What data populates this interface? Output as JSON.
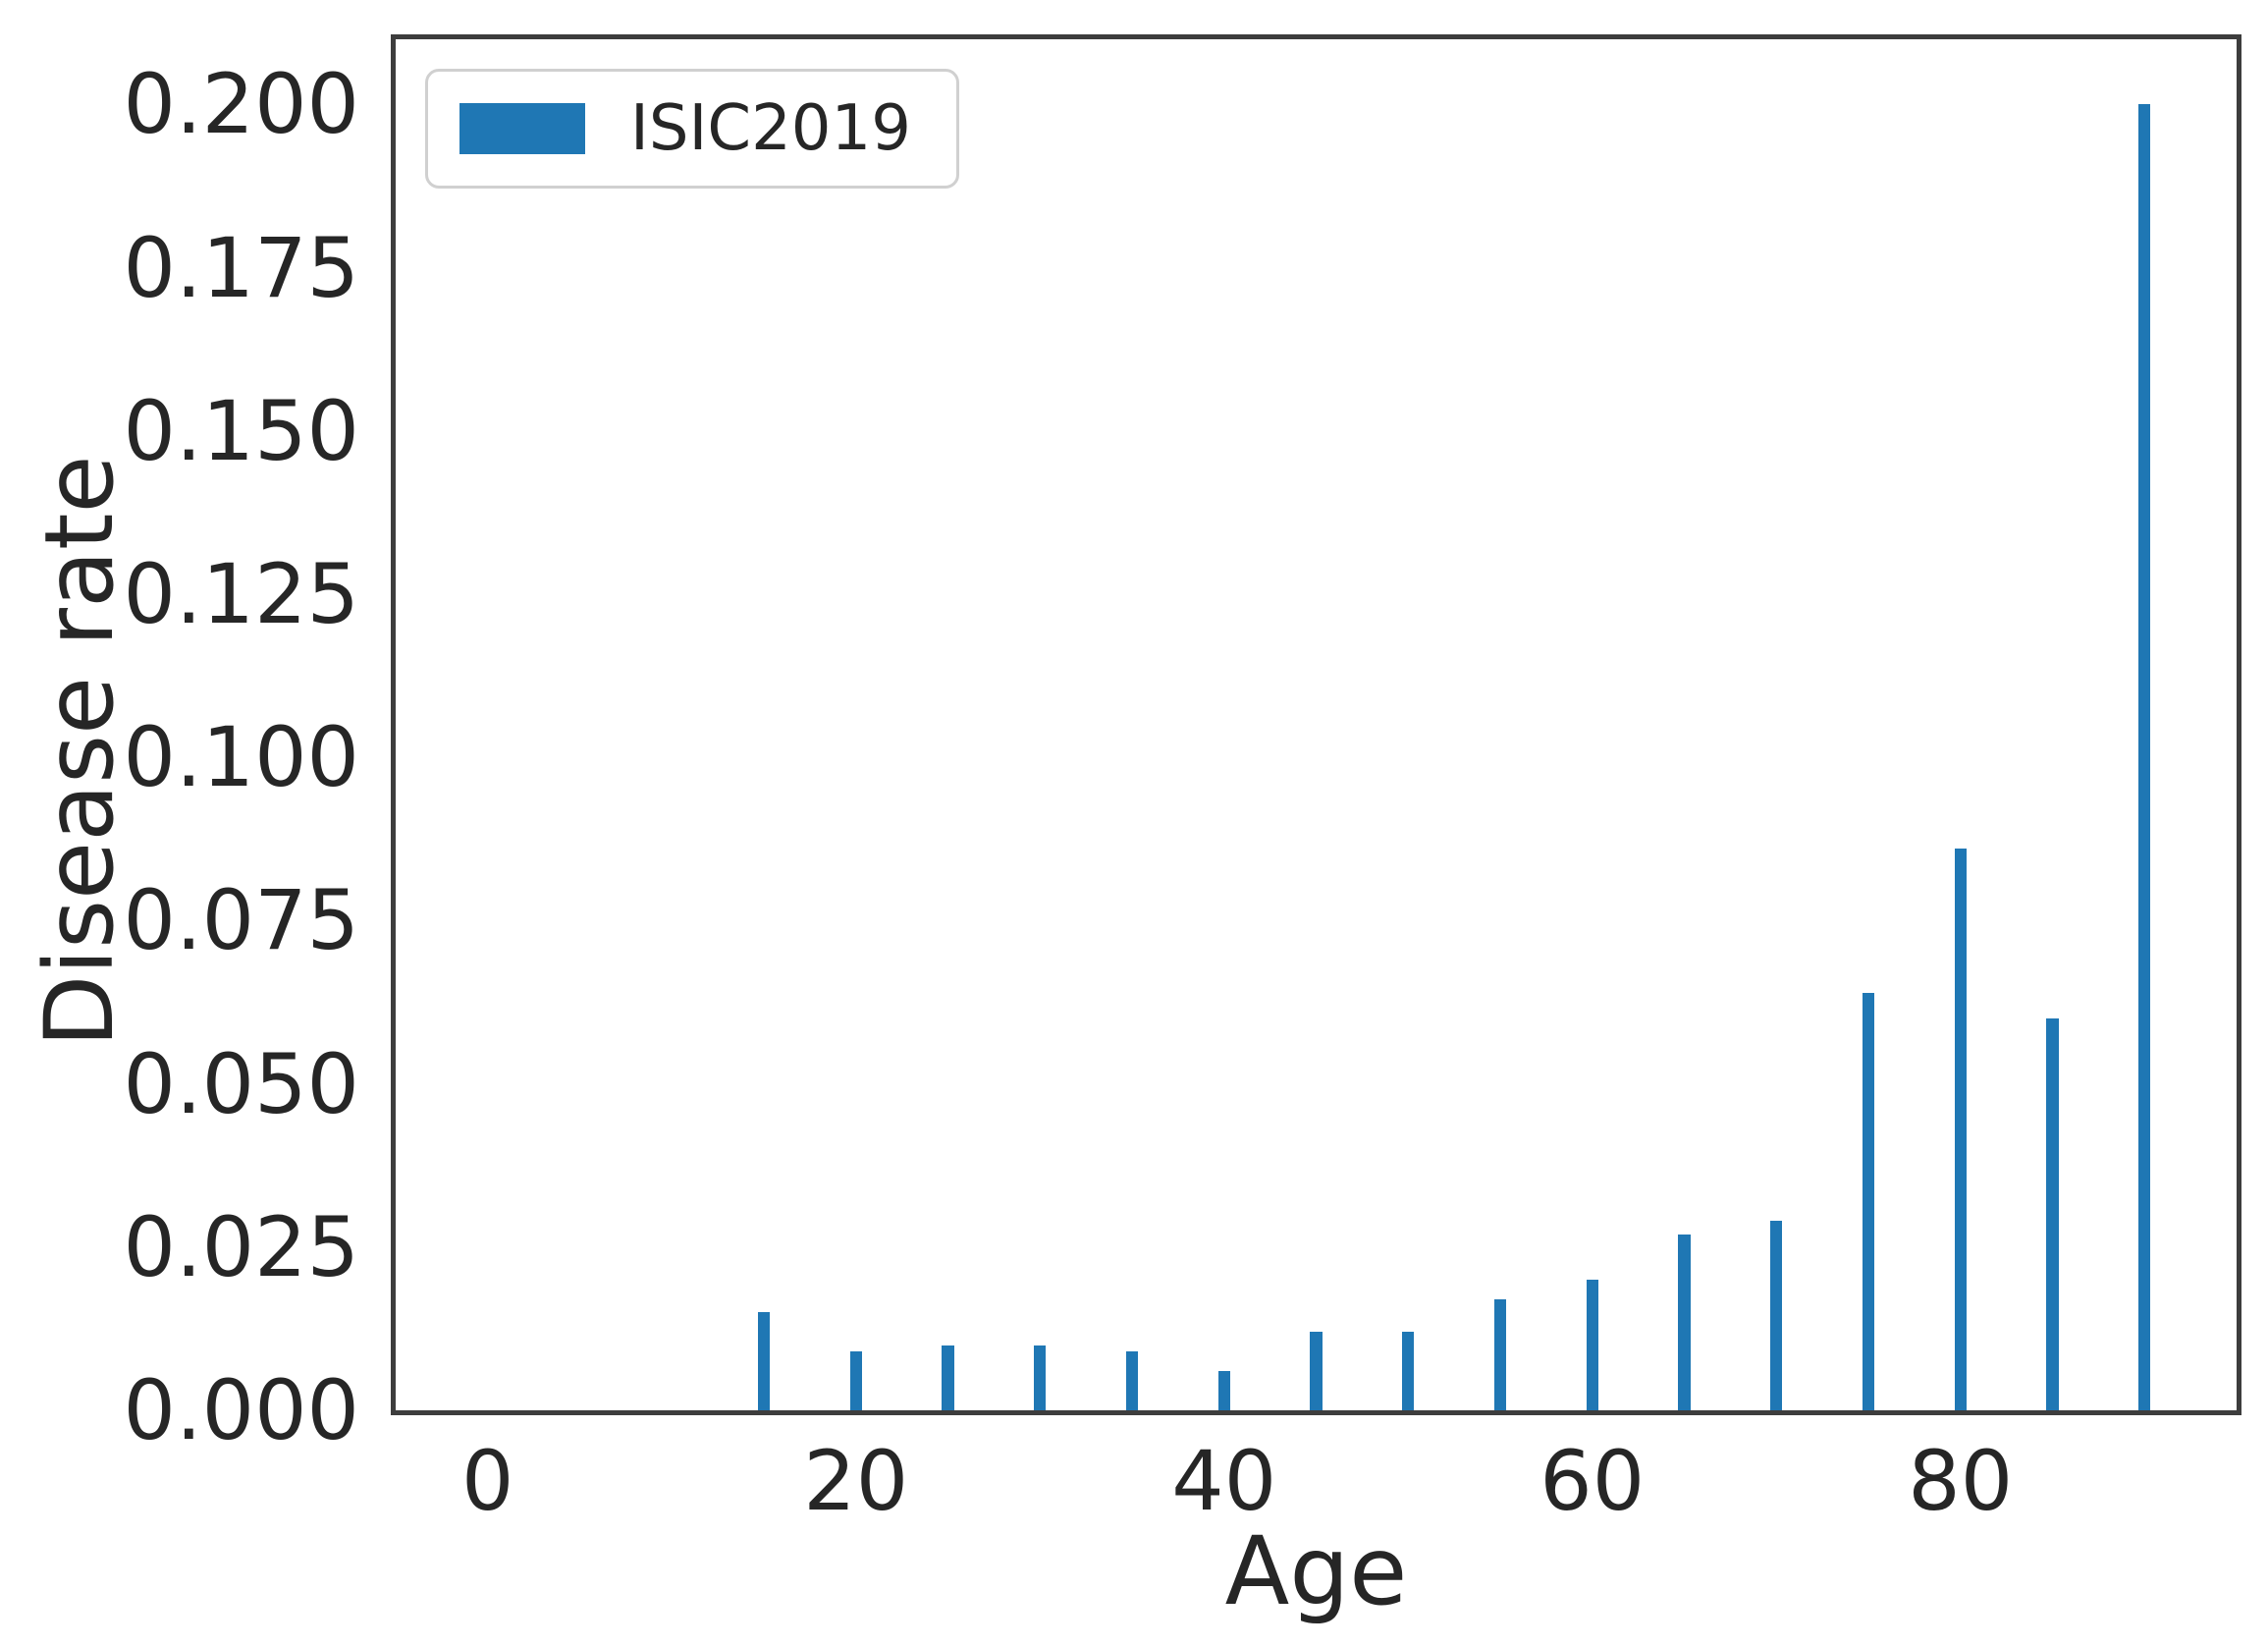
{
  "figure": {
    "background": "#ffffff"
  },
  "colors": {
    "bar": "#1f77b4",
    "spine": "#3d3d3d",
    "text": "#262626",
    "legend_border": "#d0d0d0"
  },
  "chart_data": {
    "type": "bar",
    "title": "",
    "xlabel": "Age",
    "ylabel": "Disease rate",
    "grid": false,
    "legend_position": "upper left",
    "xlim": [
      -5,
      95
    ],
    "ylim": [
      0,
      0.21
    ],
    "bar_width_x_units": 0.65,
    "categories": [
      15,
      20,
      25,
      30,
      35,
      40,
      45,
      50,
      55,
      60,
      65,
      70,
      75,
      80,
      85,
      90
    ],
    "series": [
      {
        "name": "ISIC2019",
        "color": "#1f77b4",
        "values": [
          0.015,
          0.009,
          0.01,
          0.01,
          0.009,
          0.006,
          0.012,
          0.012,
          0.017,
          0.02,
          0.027,
          0.029,
          0.064,
          0.086,
          0.06,
          0.2
        ]
      }
    ],
    "xticks": [
      {
        "value": 0,
        "label": "0"
      },
      {
        "value": 20,
        "label": "20"
      },
      {
        "value": 40,
        "label": "40"
      },
      {
        "value": 60,
        "label": "60"
      },
      {
        "value": 80,
        "label": "80"
      }
    ],
    "yticks": [
      {
        "value": 0.0,
        "label": "0.000"
      },
      {
        "value": 0.025,
        "label": "0.025"
      },
      {
        "value": 0.05,
        "label": "0.050"
      },
      {
        "value": 0.075,
        "label": "0.075"
      },
      {
        "value": 0.1,
        "label": "0.100"
      },
      {
        "value": 0.125,
        "label": "0.125"
      },
      {
        "value": 0.15,
        "label": "0.150"
      },
      {
        "value": 0.175,
        "label": "0.175"
      },
      {
        "value": 0.2,
        "label": "0.200"
      }
    ]
  }
}
